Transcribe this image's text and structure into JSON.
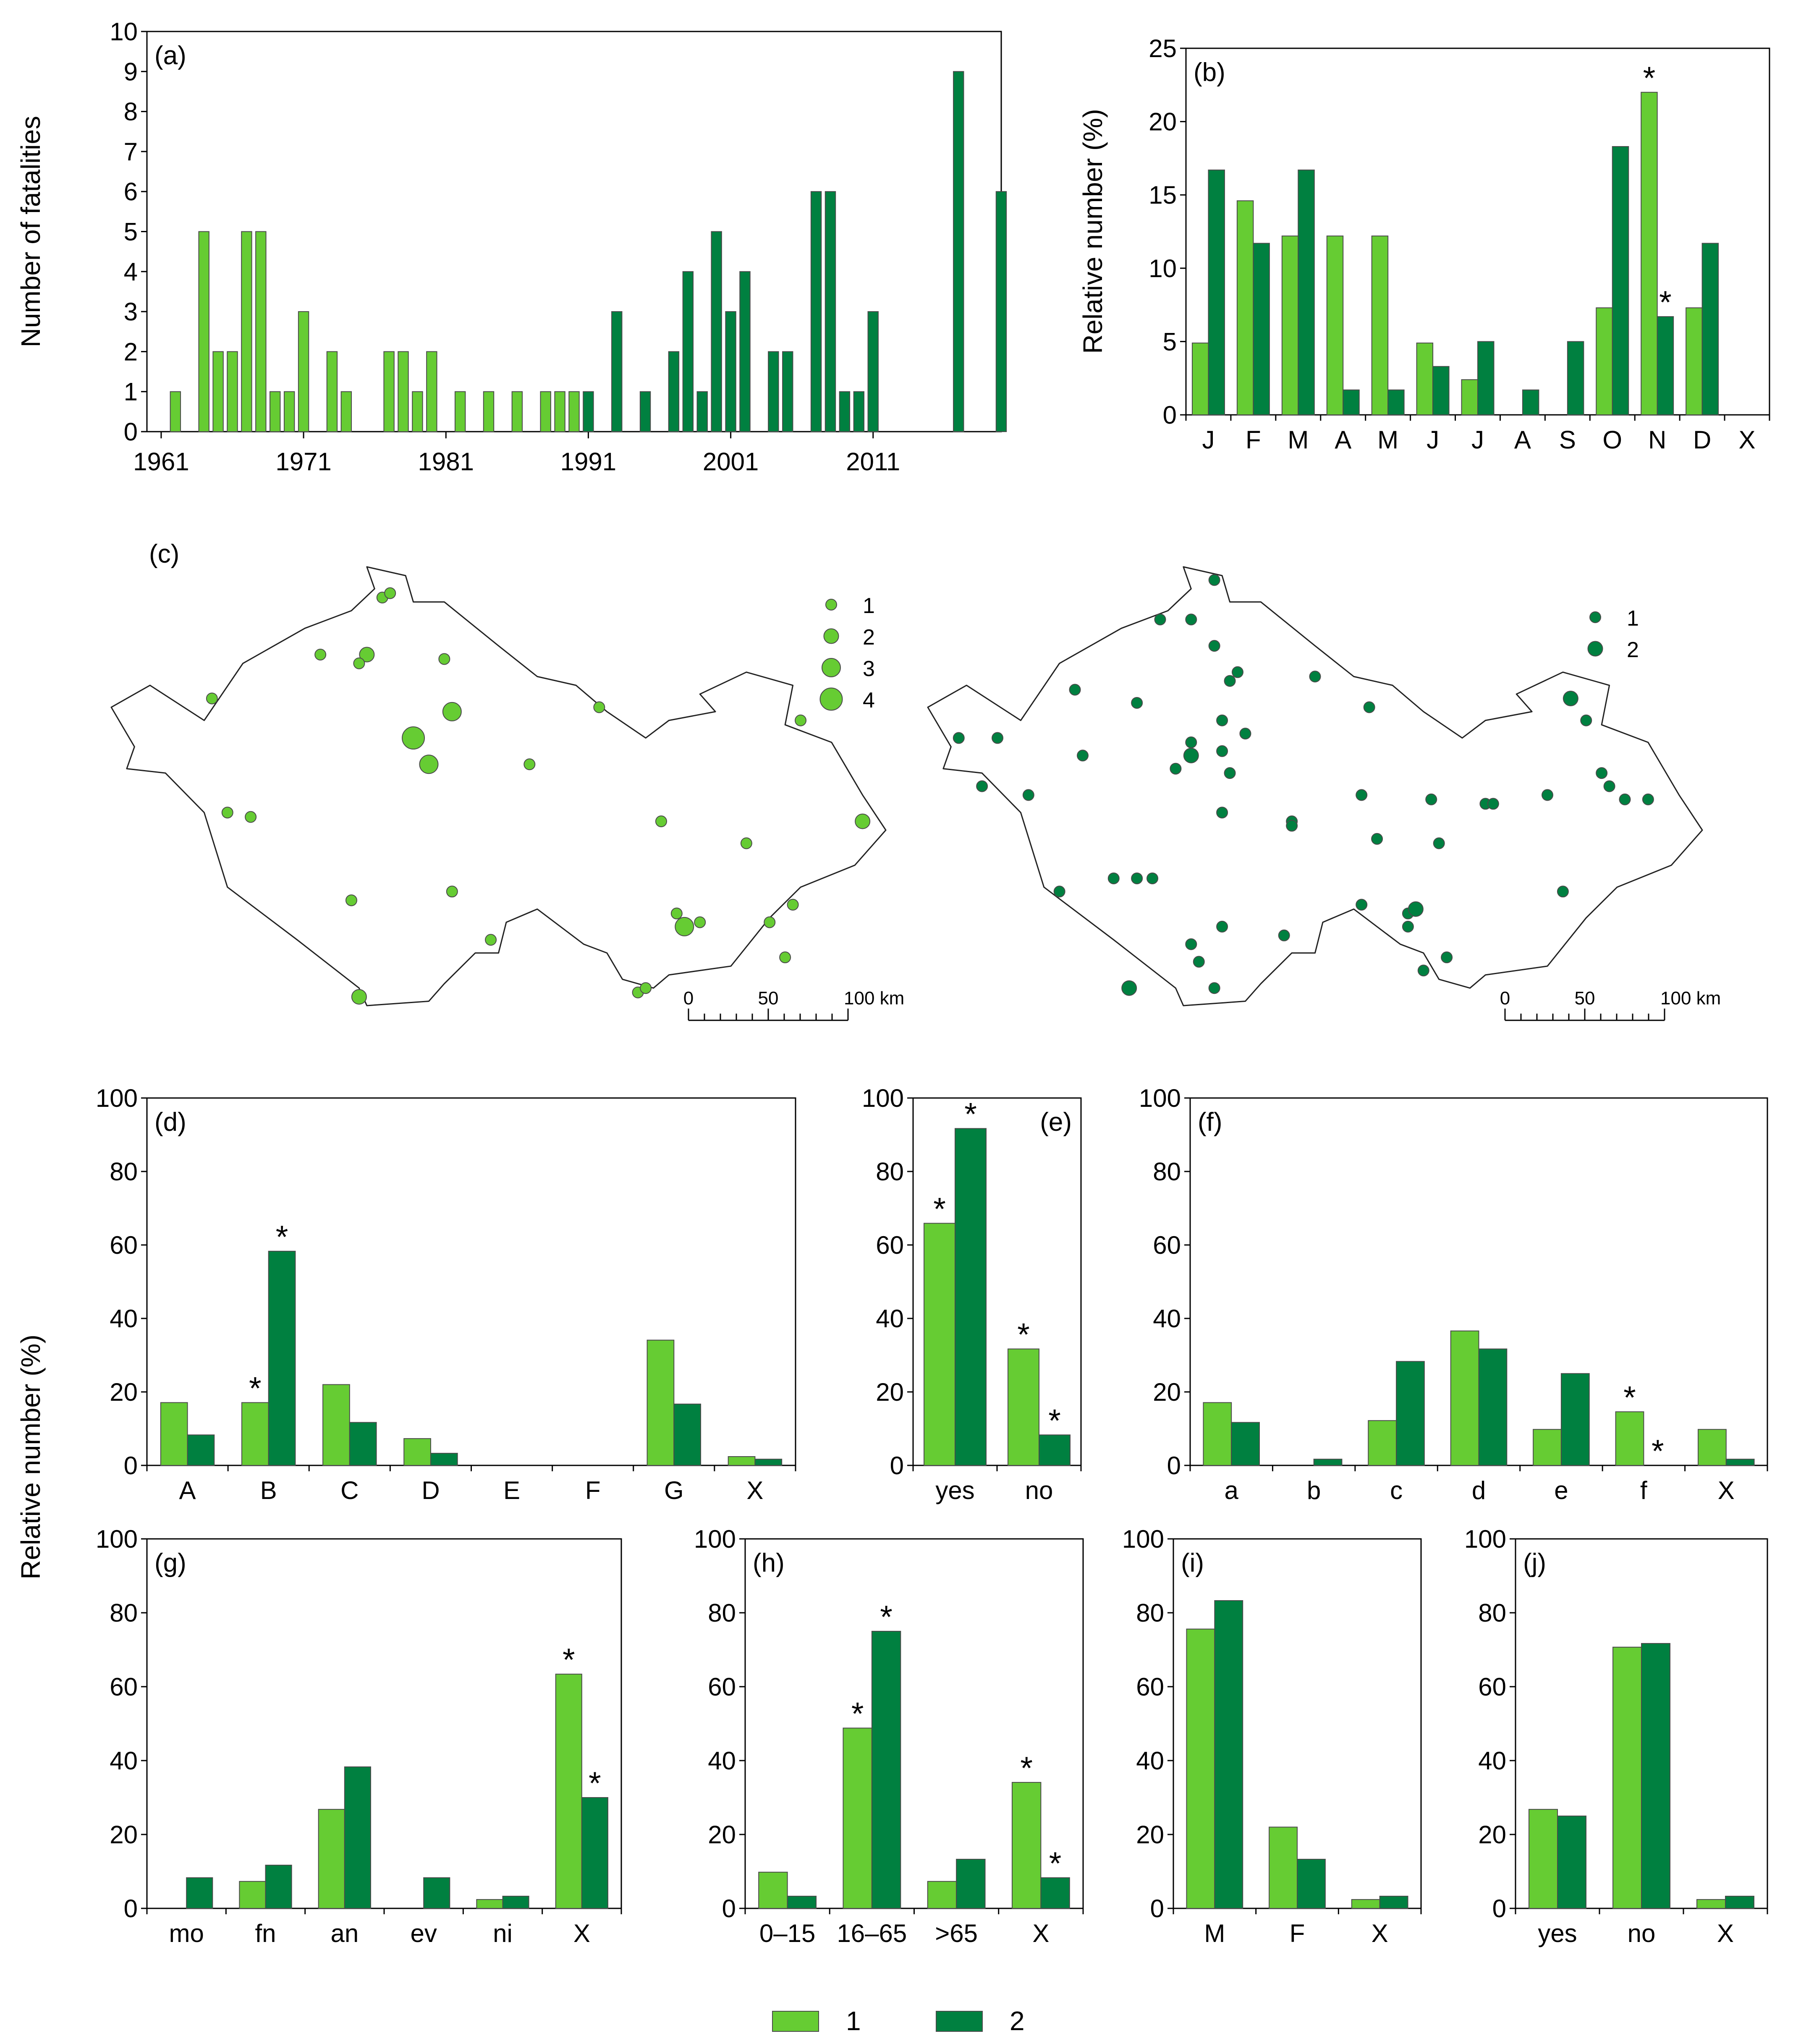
{
  "colors": {
    "series1": "#66cc33",
    "series2": "#008040",
    "edge": "#4a4a4a"
  },
  "legend": {
    "labels": [
      "1",
      "2"
    ]
  },
  "asterisk": "*",
  "chart_data": [
    {
      "id": "a",
      "panel_label": "(a)",
      "type": "bar",
      "ylabel": "Number of fatalities",
      "ylim": [
        0,
        10
      ],
      "yticks": [
        "0",
        "1",
        "2",
        "3",
        "4",
        "5",
        "6",
        "7",
        "8",
        "9",
        "10"
      ],
      "xticks": [
        "1961",
        "1971",
        "1981",
        "1991",
        "2001",
        "2011"
      ],
      "xtick_years": [
        1961,
        1971,
        1981,
        1991,
        2001,
        2011
      ],
      "year_range": [
        1960,
        2020
      ],
      "series": [
        {
          "name": "1",
          "points": [
            [
              1962,
              1
            ],
            [
              1964,
              5
            ],
            [
              1965,
              2
            ],
            [
              1966,
              2
            ],
            [
              1967,
              5
            ],
            [
              1968,
              5
            ],
            [
              1969,
              1
            ],
            [
              1970,
              1
            ],
            [
              1971,
              3
            ],
            [
              1973,
              2
            ],
            [
              1974,
              1
            ],
            [
              1977,
              2
            ],
            [
              1978,
              2
            ],
            [
              1979,
              1
            ],
            [
              1980,
              2
            ],
            [
              1982,
              1
            ],
            [
              1984,
              1
            ],
            [
              1986,
              1
            ],
            [
              1988,
              1
            ],
            [
              1989,
              1
            ],
            [
              1990,
              1
            ]
          ]
        },
        {
          "name": "2",
          "points": [
            [
              1991,
              1
            ],
            [
              1993,
              3
            ],
            [
              1995,
              1
            ],
            [
              1997,
              2
            ],
            [
              1998,
              4
            ],
            [
              1999,
              1
            ],
            [
              2000,
              5
            ],
            [
              2001,
              3
            ],
            [
              2002,
              4
            ],
            [
              2004,
              2
            ],
            [
              2005,
              2
            ],
            [
              2007,
              6
            ],
            [
              2008,
              6
            ],
            [
              2009,
              1
            ],
            [
              2010,
              1
            ],
            [
              2011,
              3
            ],
            [
              2017,
              9
            ],
            [
              2020,
              6
            ]
          ]
        }
      ]
    },
    {
      "id": "b",
      "panel_label": "(b)",
      "type": "bar",
      "ylabel": "Relative number (%)",
      "ylim": [
        0,
        25
      ],
      "yticks": [
        "0",
        "5",
        "10",
        "15",
        "20",
        "25"
      ],
      "categories": [
        "J",
        "F",
        "M",
        "A",
        "M",
        "J",
        "J",
        "A",
        "S",
        "O",
        "N",
        "D",
        "X"
      ],
      "series": [
        {
          "name": "1",
          "values": [
            4.9,
            14.6,
            12.2,
            12.2,
            12.2,
            4.9,
            2.4,
            0,
            0,
            7.3,
            22.0,
            7.3,
            0
          ]
        },
        {
          "name": "2",
          "values": [
            16.7,
            11.7,
            16.7,
            1.7,
            1.7,
            3.3,
            5.0,
            1.7,
            5.0,
            18.3,
            6.7,
            11.7,
            0
          ]
        }
      ],
      "stars": [
        [
          0,
          10
        ],
        [
          1,
          10
        ]
      ]
    },
    {
      "id": "d",
      "panel_label": "(d)",
      "type": "bar",
      "ylim": [
        0,
        100
      ],
      "yticks": [
        "0",
        "20",
        "40",
        "60",
        "80",
        "100"
      ],
      "categories": [
        "A",
        "B",
        "C",
        "D",
        "E",
        "F",
        "G",
        "X"
      ],
      "series": [
        {
          "name": "1",
          "values": [
            17.1,
            17.1,
            22.0,
            7.3,
            0,
            0,
            34.1,
            2.4
          ]
        },
        {
          "name": "2",
          "values": [
            8.3,
            58.3,
            11.7,
            3.3,
            0,
            0,
            16.7,
            1.7
          ]
        }
      ],
      "stars": [
        [
          0,
          1
        ],
        [
          1,
          1
        ]
      ]
    },
    {
      "id": "e",
      "panel_label": "(e)",
      "type": "bar",
      "ylim": [
        0,
        100
      ],
      "yticks": [
        "0",
        "20",
        "40",
        "60",
        "80",
        "100"
      ],
      "categories": [
        "yes",
        "no"
      ],
      "series": [
        {
          "name": "1",
          "values": [
            65.9,
            31.7
          ]
        },
        {
          "name": "2",
          "values": [
            91.7,
            8.3
          ]
        }
      ],
      "stars": [
        [
          0,
          0
        ],
        [
          1,
          0
        ],
        [
          0,
          1
        ],
        [
          1,
          1
        ]
      ]
    },
    {
      "id": "f",
      "panel_label": "(f)",
      "type": "bar",
      "ylim": [
        0,
        100
      ],
      "yticks": [
        "0",
        "20",
        "40",
        "60",
        "80",
        "100"
      ],
      "categories": [
        "a",
        "b",
        "c",
        "d",
        "e",
        "f",
        "X"
      ],
      "series": [
        {
          "name": "1",
          "values": [
            17.1,
            0,
            12.2,
            36.6,
            9.8,
            14.6,
            9.8
          ]
        },
        {
          "name": "2",
          "values": [
            11.7,
            1.7,
            28.3,
            31.7,
            25.0,
            0,
            1.7
          ]
        }
      ],
      "stars": [
        [
          0,
          5
        ],
        [
          1,
          5
        ]
      ]
    },
    {
      "id": "g",
      "panel_label": "(g)",
      "type": "bar",
      "ylabel": "Relative number (%)",
      "ylim": [
        0,
        100
      ],
      "yticks": [
        "0",
        "20",
        "40",
        "60",
        "80",
        "100"
      ],
      "categories": [
        "mo",
        "fn",
        "an",
        "ev",
        "ni",
        "X"
      ],
      "series": [
        {
          "name": "1",
          "values": [
            0,
            7.3,
            26.8,
            0,
            2.4,
            63.4
          ]
        },
        {
          "name": "2",
          "values": [
            8.3,
            11.7,
            38.3,
            8.3,
            3.3,
            30.0
          ]
        }
      ],
      "stars": [
        [
          0,
          5
        ],
        [
          1,
          5
        ]
      ]
    },
    {
      "id": "h",
      "panel_label": "(h)",
      "type": "bar",
      "ylim": [
        0,
        100
      ],
      "yticks": [
        "0",
        "20",
        "40",
        "60",
        "80",
        "100"
      ],
      "categories": [
        "0–15",
        "16–65",
        ">65",
        "X"
      ],
      "series": [
        {
          "name": "1",
          "values": [
            9.8,
            48.8,
            7.3,
            34.1
          ]
        },
        {
          "name": "2",
          "values": [
            3.3,
            75.0,
            13.3,
            8.3
          ]
        }
      ],
      "stars": [
        [
          0,
          1
        ],
        [
          1,
          1
        ],
        [
          0,
          3
        ],
        [
          1,
          3
        ]
      ]
    },
    {
      "id": "i",
      "panel_label": "(i)",
      "type": "bar",
      "ylim": [
        0,
        100
      ],
      "yticks": [
        "0",
        "20",
        "40",
        "60",
        "80",
        "100"
      ],
      "categories": [
        "M",
        "F",
        "X"
      ],
      "series": [
        {
          "name": "1",
          "values": [
            75.6,
            22.0,
            2.4
          ]
        },
        {
          "name": "2",
          "values": [
            83.3,
            13.3,
            3.3
          ]
        }
      ],
      "stars": []
    },
    {
      "id": "j",
      "panel_label": "(j)",
      "type": "bar",
      "ylim": [
        0,
        100
      ],
      "yticks": [
        "0",
        "20",
        "40",
        "60",
        "80",
        "100"
      ],
      "categories": [
        "yes",
        "no",
        "X"
      ],
      "series": [
        {
          "name": "1",
          "values": [
            26.8,
            70.7,
            2.4
          ]
        },
        {
          "name": "2",
          "values": [
            25.0,
            71.7,
            3.3
          ]
        }
      ],
      "stars": []
    }
  ],
  "maps": {
    "panel_label": "(c)",
    "scale_labels": [
      "0",
      "50",
      "100 km"
    ],
    "left": {
      "legend": [
        "1",
        "2",
        "3",
        "4"
      ],
      "points": [
        [
          0.35,
          0.07,
          1
        ],
        [
          0.36,
          0.06,
          1
        ],
        [
          0.27,
          0.2,
          1
        ],
        [
          0.33,
          0.2,
          2
        ],
        [
          0.32,
          0.22,
          1
        ],
        [
          0.43,
          0.21,
          1
        ],
        [
          0.13,
          0.3,
          1
        ],
        [
          0.39,
          0.39,
          4
        ],
        [
          0.44,
          0.33,
          3
        ],
        [
          0.41,
          0.45,
          3
        ],
        [
          0.63,
          0.32,
          1
        ],
        [
          0.54,
          0.45,
          1
        ],
        [
          0.89,
          0.35,
          1
        ],
        [
          0.15,
          0.56,
          1
        ],
        [
          0.18,
          0.57,
          1
        ],
        [
          0.71,
          0.58,
          1
        ],
        [
          0.82,
          0.63,
          1
        ],
        [
          0.97,
          0.58,
          2
        ],
        [
          0.31,
          0.76,
          1
        ],
        [
          0.44,
          0.74,
          1
        ],
        [
          0.49,
          0.85,
          1
        ],
        [
          0.73,
          0.79,
          1
        ],
        [
          0.74,
          0.82,
          3
        ],
        [
          0.76,
          0.81,
          1
        ],
        [
          0.85,
          0.81,
          1
        ],
        [
          0.88,
          0.77,
          1
        ],
        [
          0.87,
          0.89,
          1
        ],
        [
          0.32,
          0.98,
          2
        ],
        [
          0.68,
          0.97,
          1
        ],
        [
          0.69,
          0.96,
          1
        ]
      ]
    },
    "right": {
      "legend": [
        "1",
        "2"
      ],
      "points": [
        [
          0.37,
          0.03,
          1
        ],
        [
          0.34,
          0.12,
          1
        ],
        [
          0.3,
          0.12,
          1
        ],
        [
          0.37,
          0.18,
          1
        ],
        [
          0.4,
          0.24,
          1
        ],
        [
          0.39,
          0.26,
          1
        ],
        [
          0.5,
          0.25,
          1
        ],
        [
          0.19,
          0.28,
          1
        ],
        [
          0.27,
          0.31,
          1
        ],
        [
          0.38,
          0.35,
          1
        ],
        [
          0.41,
          0.38,
          1
        ],
        [
          0.34,
          0.4,
          1
        ],
        [
          0.34,
          0.43,
          2
        ],
        [
          0.38,
          0.42,
          1
        ],
        [
          0.32,
          0.46,
          1
        ],
        [
          0.39,
          0.47,
          1
        ],
        [
          0.57,
          0.32,
          1
        ],
        [
          0.83,
          0.3,
          2
        ],
        [
          0.85,
          0.35,
          1
        ],
        [
          0.04,
          0.39,
          1
        ],
        [
          0.09,
          0.39,
          1
        ],
        [
          0.2,
          0.43,
          1
        ],
        [
          0.07,
          0.5,
          1
        ],
        [
          0.13,
          0.52,
          1
        ],
        [
          0.38,
          0.56,
          1
        ],
        [
          0.47,
          0.58,
          1
        ],
        [
          0.47,
          0.59,
          1
        ],
        [
          0.56,
          0.52,
          1
        ],
        [
          0.87,
          0.47,
          1
        ],
        [
          0.65,
          0.53,
          1
        ],
        [
          0.72,
          0.54,
          1
        ],
        [
          0.73,
          0.54,
          1
        ],
        [
          0.88,
          0.5,
          1
        ],
        [
          0.8,
          0.52,
          1
        ],
        [
          0.9,
          0.53,
          1
        ],
        [
          0.93,
          0.53,
          1
        ],
        [
          0.66,
          0.63,
          1
        ],
        [
          0.58,
          0.62,
          1
        ],
        [
          0.24,
          0.71,
          1
        ],
        [
          0.27,
          0.71,
          1
        ],
        [
          0.29,
          0.71,
          1
        ],
        [
          0.17,
          0.74,
          1
        ],
        [
          0.56,
          0.77,
          1
        ],
        [
          0.62,
          0.79,
          1
        ],
        [
          0.63,
          0.78,
          2
        ],
        [
          0.62,
          0.82,
          1
        ],
        [
          0.34,
          0.86,
          1
        ],
        [
          0.38,
          0.82,
          1
        ],
        [
          0.46,
          0.84,
          1
        ],
        [
          0.67,
          0.89,
          1
        ],
        [
          0.64,
          0.92,
          1
        ],
        [
          0.82,
          0.74,
          1
        ],
        [
          0.35,
          0.9,
          1
        ],
        [
          0.26,
          0.96,
          2
        ],
        [
          0.37,
          0.96,
          1
        ]
      ]
    }
  }
}
